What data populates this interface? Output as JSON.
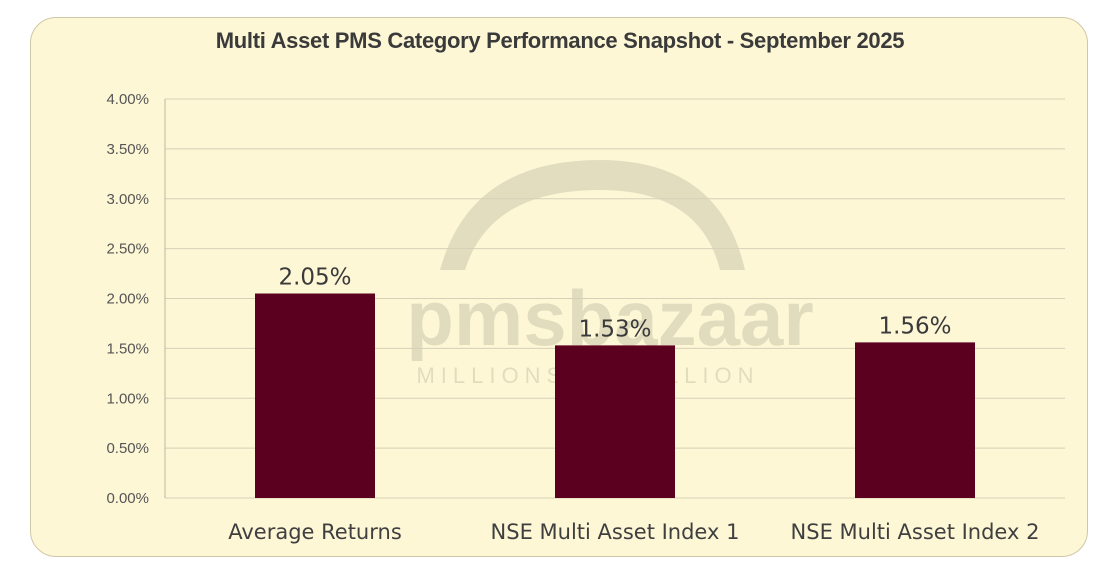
{
  "chart_data": {
    "type": "bar",
    "title": "Multi Asset PMS Category Performance Snapshot - September 2025",
    "categories": [
      "Average Returns",
      "NSE Multi Asset Index 1",
      "NSE Multi Asset Index 2"
    ],
    "values": [
      2.05,
      1.53,
      1.56
    ],
    "value_labels": [
      "2.05%",
      "1.53%",
      "1.56%"
    ],
    "y_ticks": [
      "0.00%",
      "0.50%",
      "1.00%",
      "1.50%",
      "2.00%",
      "2.50%",
      "3.00%",
      "3.50%",
      "4.00%"
    ],
    "ylim": [
      0,
      4
    ],
    "grid": true,
    "legend": "none",
    "bar_color": "#5c0020"
  },
  "watermark": {
    "brand": "pmsbazaar",
    "tagline": "MILLIONS TO BILLION"
  },
  "colors": {
    "background": "#fdf7d6",
    "grid": "#d6d0b8",
    "bar": "#5c0020"
  }
}
